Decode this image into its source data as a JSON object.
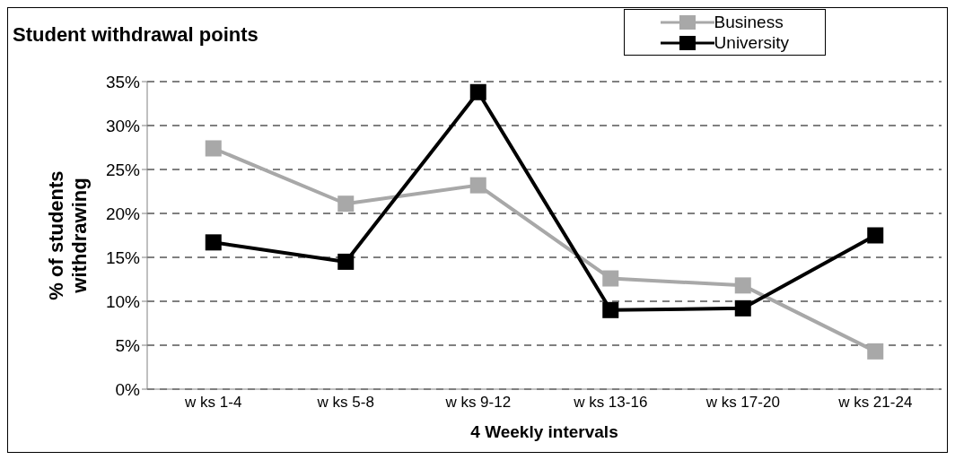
{
  "chart_data": {
    "type": "line",
    "title": "Student withdrawal points",
    "xlabel": "4 Weekly intervals",
    "ylabel": "% of students withdrawing",
    "categories": [
      "w ks 1-4",
      "w ks 5-8",
      "w ks 9-12",
      "w ks 13-16",
      "w ks 17-20",
      "w ks 21-24"
    ],
    "series": [
      {
        "name": "Business",
        "color": "#a8a8a8",
        "values": [
          27.4,
          21.1,
          23.2,
          12.6,
          11.8,
          4.3
        ]
      },
      {
        "name": "University",
        "color": "#000000",
        "values": [
          16.7,
          14.5,
          33.8,
          9.0,
          9.2,
          17.5
        ]
      }
    ],
    "ylim": [
      0,
      35
    ],
    "yticks": [
      {
        "value": 0,
        "label": "0%"
      },
      {
        "value": 5,
        "label": "5%"
      },
      {
        "value": 10,
        "label": "10%"
      },
      {
        "value": 15,
        "label": "15%"
      },
      {
        "value": 20,
        "label": "20%"
      },
      {
        "value": 25,
        "label": "25%"
      },
      {
        "value": 30,
        "label": "30%"
      },
      {
        "value": 35,
        "label": "35%"
      }
    ],
    "grid": "y",
    "legend": "top right",
    "marker": "square",
    "line_style": "solid"
  }
}
